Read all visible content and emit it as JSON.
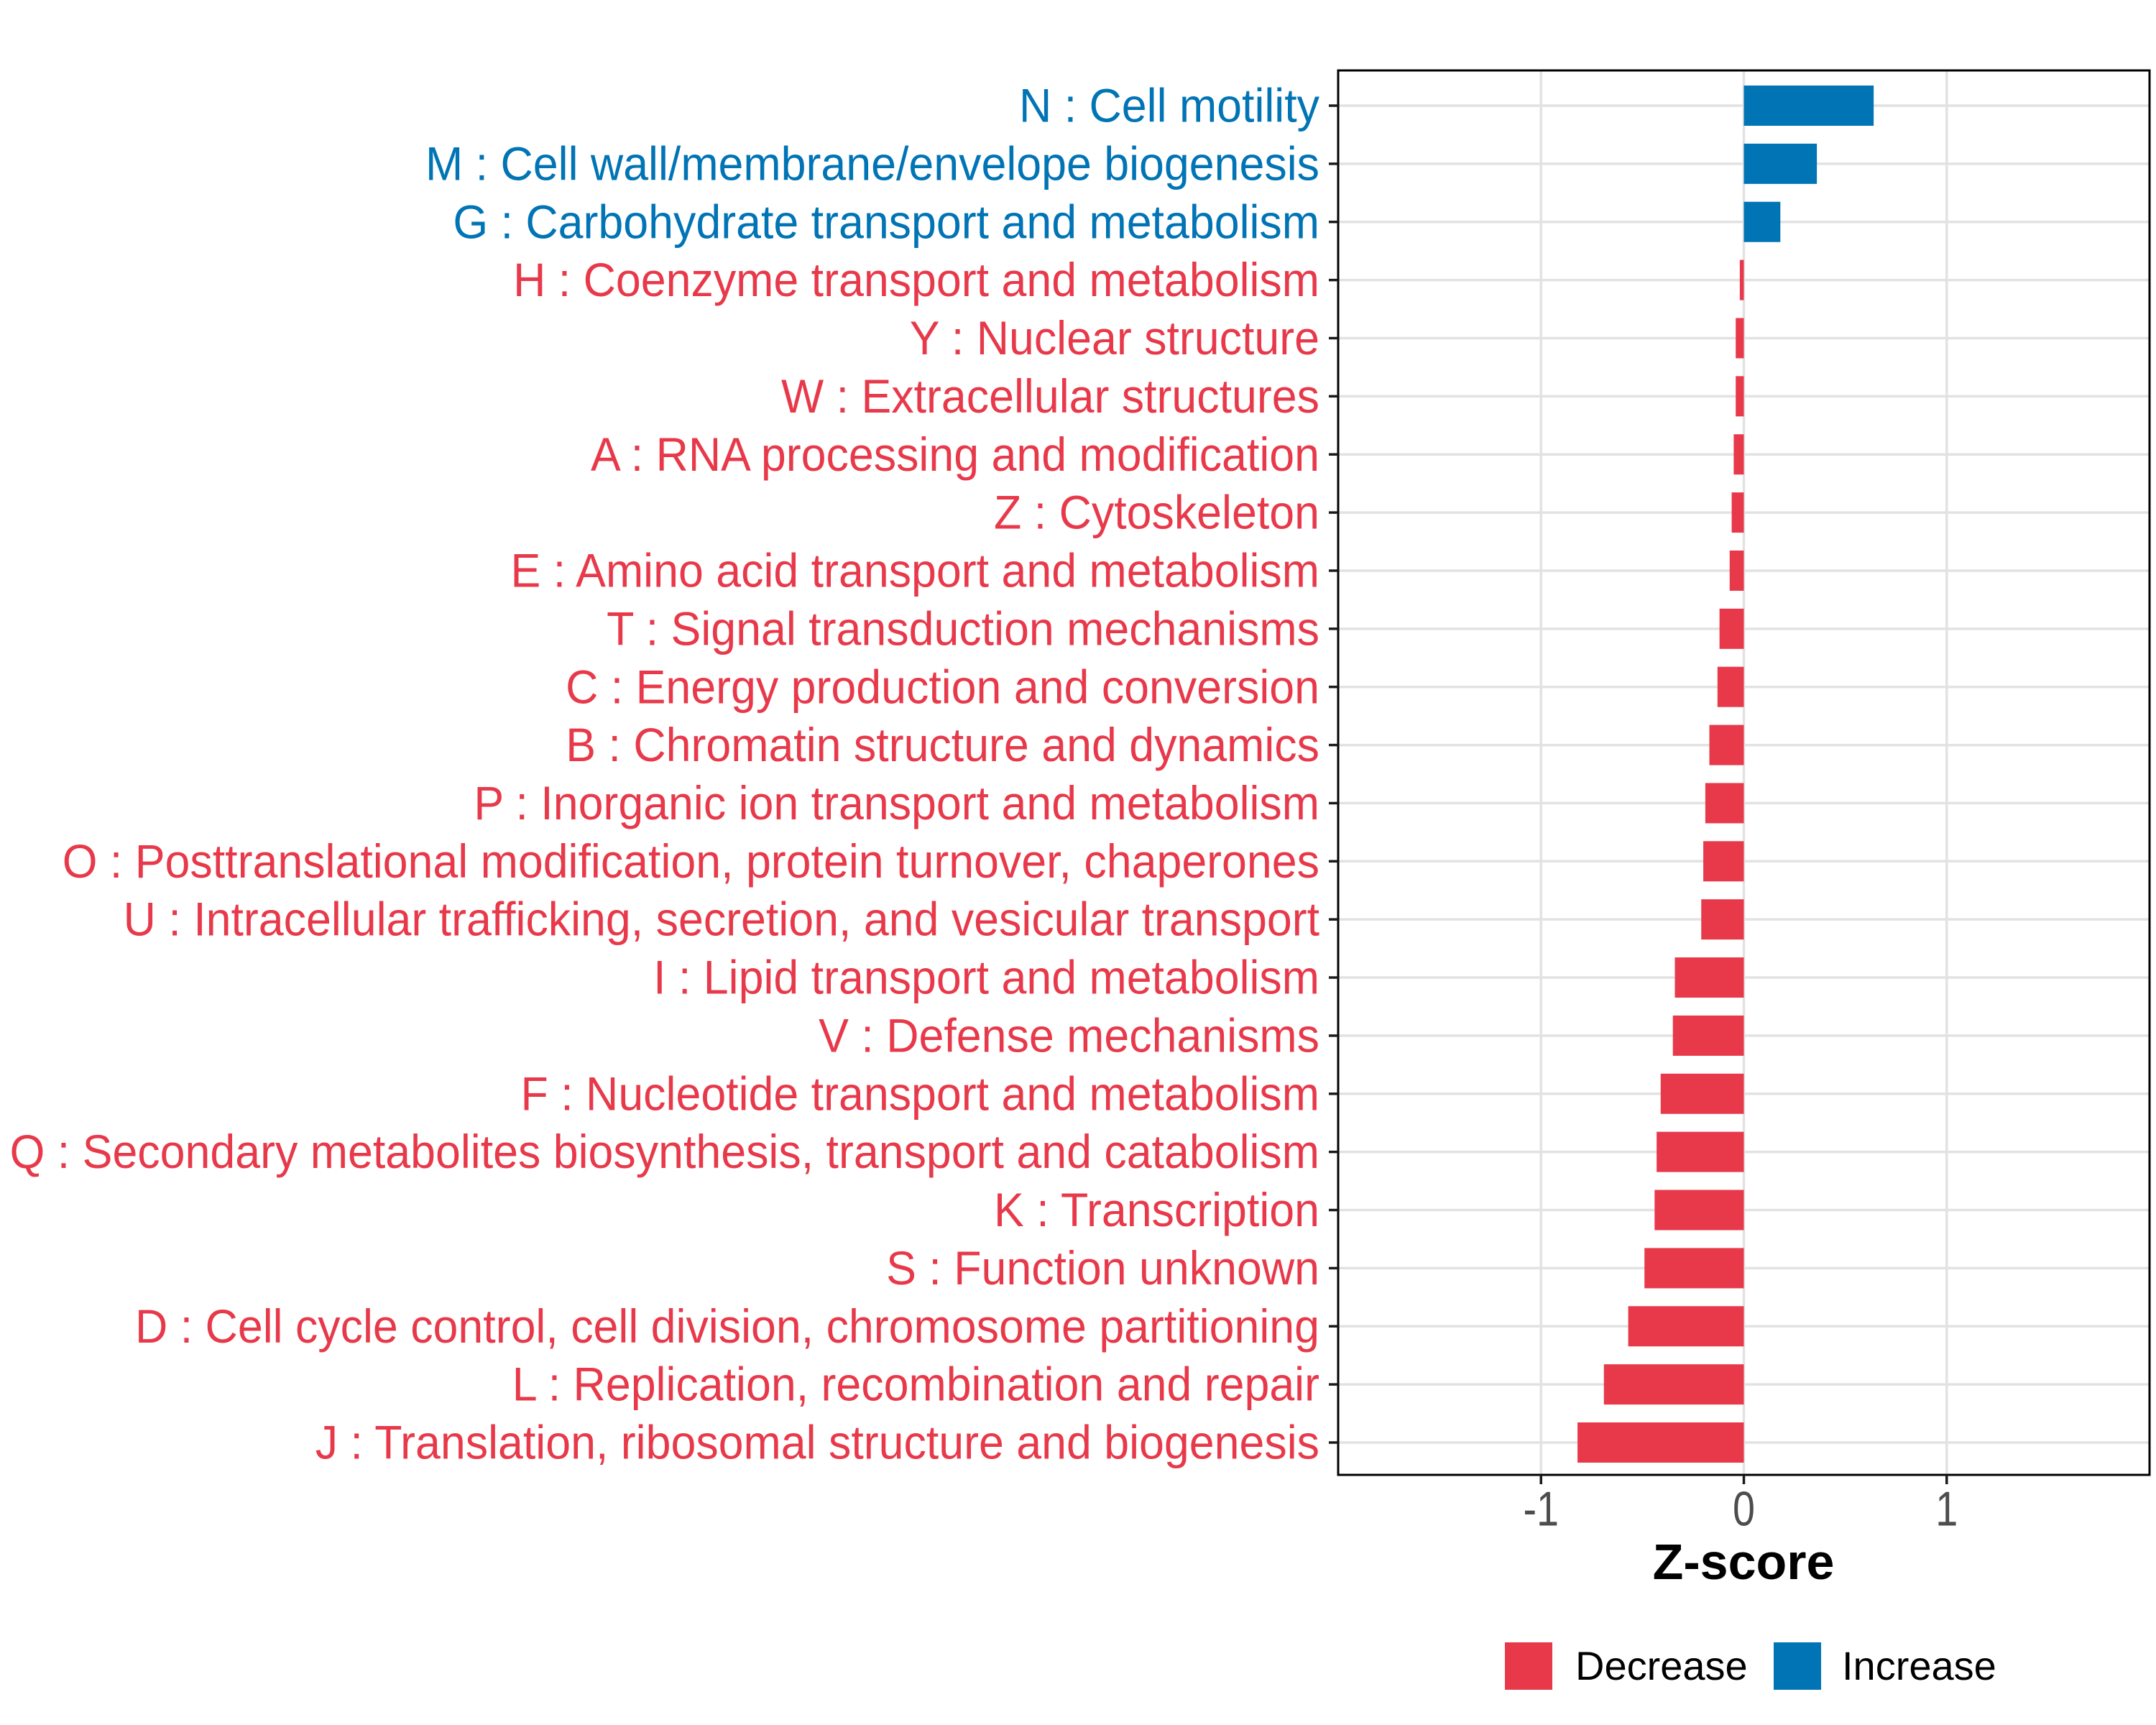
{
  "chart_data": {
    "type": "bar",
    "orientation": "horizontal",
    "title": "",
    "xlabel": "Z-score",
    "ylabel": "",
    "xlim": [
      -2,
      2
    ],
    "xticks": [
      -1,
      0,
      1
    ],
    "grid": "major-only",
    "categories": [
      "N : Cell motility",
      "M : Cell wall/membrane/envelope biogenesis",
      "G : Carbohydrate transport and metabolism",
      "H : Coenzyme transport and metabolism",
      "Y : Nuclear structure",
      "W : Extracellular structures",
      "A : RNA processing and modification",
      "Z : Cytoskeleton",
      "E : Amino acid transport and metabolism",
      "T : Signal transduction mechanisms",
      "C : Energy production and conversion",
      "B : Chromatin structure and dynamics",
      "P : Inorganic ion transport and metabolism",
      "O : Posttranslational modification, protein turnover, chaperones",
      "U : Intracellular trafficking, secretion, and vesicular transport",
      "I : Lipid transport and metabolism",
      "V : Defense mechanisms",
      "F : Nucleotide transport and metabolism",
      "Q : Secondary metabolites biosynthesis, transport and catabolism",
      "K : Transcription",
      "S : Function unknown",
      "D : Cell cycle control, cell division, chromosome partitioning",
      "L : Replication, recombination and repair",
      "J : Translation, ribosomal structure and biogenesis"
    ],
    "values": [
      0.64,
      0.36,
      0.18,
      -0.02,
      -0.04,
      -0.04,
      -0.05,
      -0.06,
      -0.07,
      -0.12,
      -0.13,
      -0.17,
      -0.19,
      -0.2,
      -0.21,
      -0.34,
      -0.35,
      -0.41,
      -0.43,
      -0.44,
      -0.49,
      -0.57,
      -0.69,
      -0.82
    ],
    "legend": {
      "position": "bottom-right",
      "items": [
        {
          "label": "Decrease",
          "color": "#E8394A"
        },
        {
          "label": "Increase",
          "color": "#0074B5"
        }
      ]
    },
    "colors": {
      "decrease": "#E8394A",
      "increase": "#0074B5",
      "grid": "#E2E2E2",
      "axis_text": "#4D4D4D",
      "tick": "#1A1A1A",
      "panel_border": "#000000"
    }
  }
}
